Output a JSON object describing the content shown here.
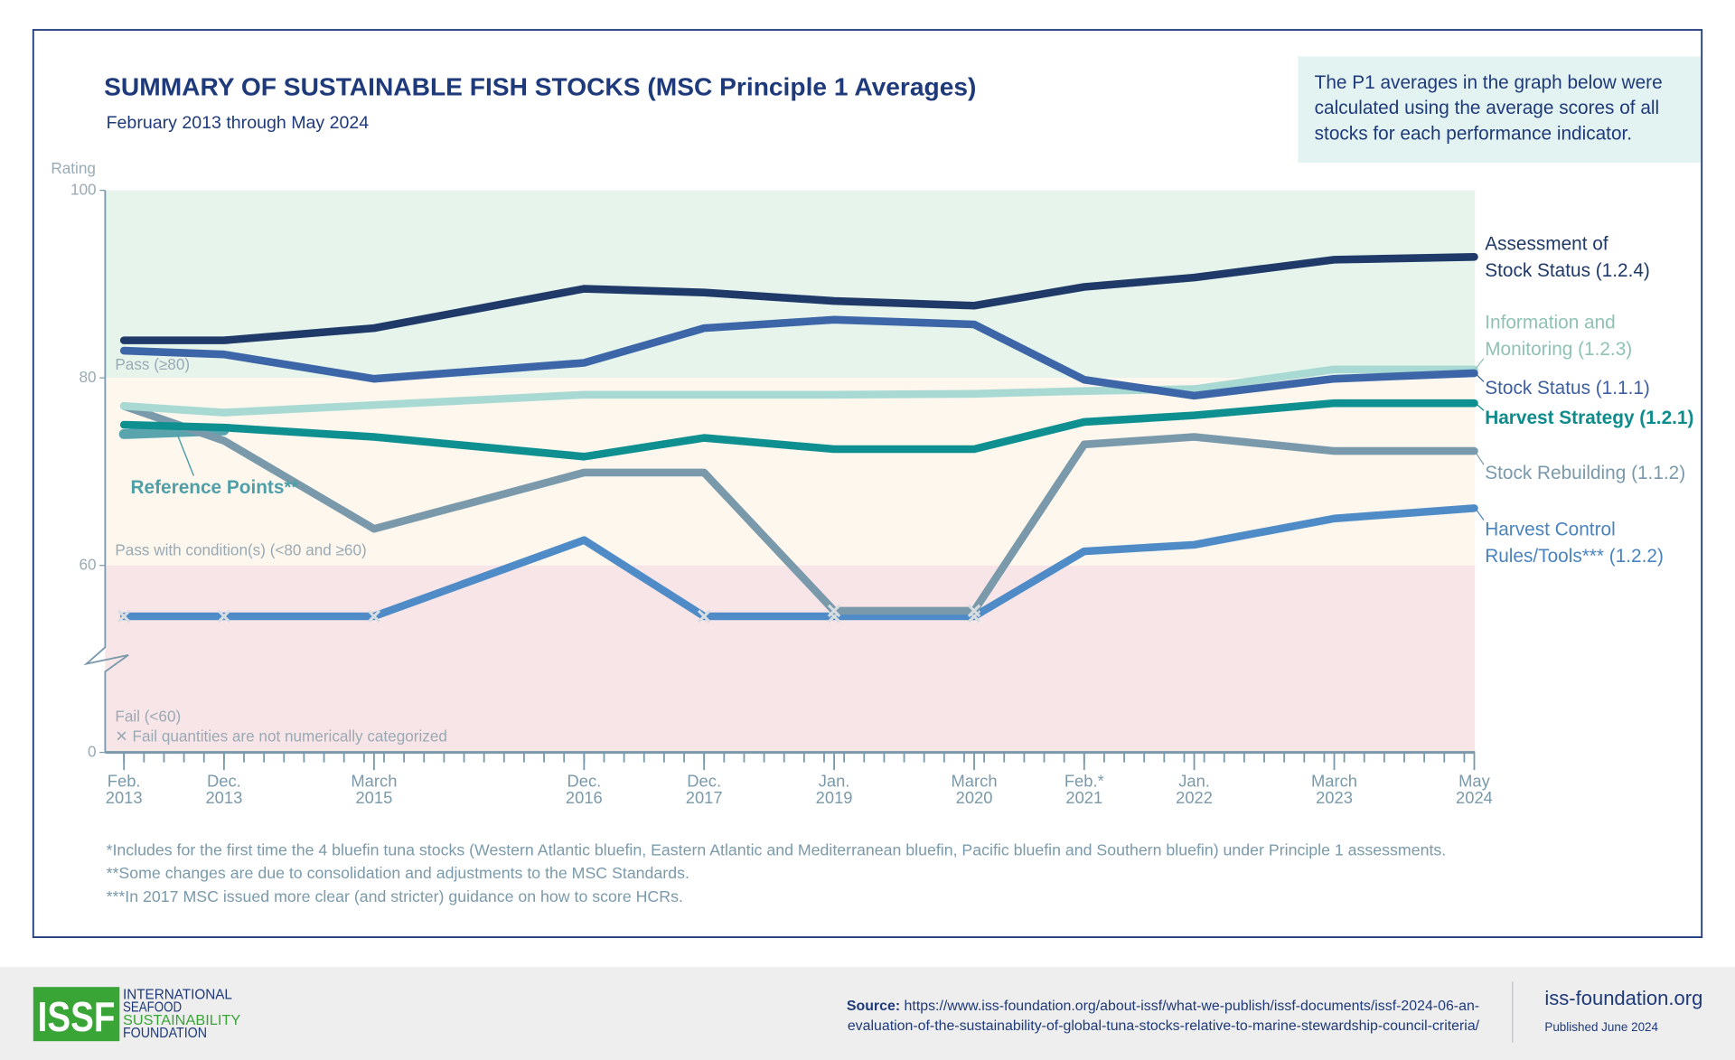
{
  "header": {
    "title": "SUMMARY OF SUSTAINABLE FISH STOCKS (MSC Principle 1 Averages)",
    "subtitle": "February 2013 through May 2024",
    "note_lines": [
      "The P1 averages in the graph below were",
      "calculated using the average scores of all",
      "stocks for each performance indicator."
    ]
  },
  "chart_data": {
    "type": "line",
    "ylabel": "Rating",
    "y_ticks": [
      "100",
      "80",
      "60",
      "0"
    ],
    "ylim": [
      0,
      100
    ],
    "axis_break_below": 60,
    "x": [
      "2013-02",
      "2013-12",
      "2015-03",
      "2016-12",
      "2017-12",
      "2019-01",
      "2020-03",
      "2021-02",
      "2022-01",
      "2023-03",
      "2024-05"
    ],
    "x_tick_labels": [
      [
        "Feb.",
        "2013"
      ],
      [
        "Dec.",
        "2013"
      ],
      [
        "March",
        "2015"
      ],
      [
        "Dec.",
        "2016"
      ],
      [
        "Dec.",
        "2017"
      ],
      [
        "Jan.",
        "2019"
      ],
      [
        "March",
        "2020"
      ],
      [
        "Feb.*",
        "2021"
      ],
      [
        "Jan.",
        "2022"
      ],
      [
        "March",
        "2023"
      ],
      [
        "May",
        "2024"
      ]
    ],
    "bands": [
      {
        "label": "Pass (≥80)",
        "from": 80,
        "to": 100,
        "color": "#e6f4ec"
      },
      {
        "label": "Pass with condition(s) (<80 and ≥60)",
        "from": 60,
        "to": 80,
        "color": "#fdf7ee"
      },
      {
        "label": "Fail (<60)",
        "from": 0,
        "to": 60,
        "color": "#f8e5e8"
      }
    ],
    "fail_marker_note": "Fail quantities are not numerically categorized",
    "series": [
      {
        "name": [
          "Assessment of",
          "Stock Status (1.2.4)"
        ],
        "color": "#1f3a68",
        "label_color": "#1f3a68",
        "values": [
          84.0,
          84.0,
          85.3,
          89.5,
          89.1,
          88.2,
          87.7,
          89.7,
          90.7,
          92.6,
          92.9
        ]
      },
      {
        "name": [
          "Information and",
          "Monitoring (1.2.3)"
        ],
        "color": "#a8dad3",
        "label_color": "#8fc2b4",
        "values": [
          77.0,
          76.3,
          77.1,
          78.2,
          78.2,
          78.2,
          78.3,
          78.6,
          78.8,
          80.9,
          80.9
        ]
      },
      {
        "name": [
          "Stock Status (1.1.1)"
        ],
        "color": "#3d66a8",
        "label_color": "#3d5fa0",
        "values": [
          82.9,
          82.5,
          79.9,
          81.6,
          85.3,
          86.2,
          85.7,
          79.8,
          78.1,
          79.9,
          80.5
        ]
      },
      {
        "name": [
          "Harvest Strategy (1.2.1)"
        ],
        "color": "#0e9090",
        "label_color": "#0e8c8c",
        "values": [
          75.0,
          74.7,
          73.7,
          71.6,
          73.6,
          72.4,
          72.4,
          75.3,
          76.0,
          77.3,
          77.3
        ]
      },
      {
        "name": [
          "Stock Rebuilding (1.1.2)"
        ],
        "color": "#7a9aab",
        "label_color": "#7a9aab",
        "values": [
          77.0,
          73.3,
          63.9,
          69.9,
          69.9,
          "fail",
          "fail",
          72.9,
          73.7,
          72.2,
          72.2
        ]
      },
      {
        "name": [
          "Harvest Control",
          "Rules/Tools*** (1.2.2)"
        ],
        "color": "#4f8cc7",
        "label_color": "#4a84c0",
        "values": [
          "fail",
          "fail",
          "fail",
          62.7,
          "fail",
          "fail",
          "fail",
          61.5,
          62.2,
          65.0,
          66.1
        ]
      },
      {
        "name": [
          "Reference Points**"
        ],
        "color": "#5aa5ad",
        "label_color": "#4ea0a8",
        "values": [
          74.0,
          74.4,
          null,
          null,
          null,
          null,
          null,
          null,
          null,
          null,
          null
        ]
      }
    ]
  },
  "footnotes": [
    "*Includes for the first time the 4 bluefin tuna stocks (Western Atlantic bluefin, Eastern Atlantic and Mediterranean bluefin, Pacific bluefin and Southern bluefin) under Principle 1 assessments.",
    "**Some changes are due to consolidation and adjustments to the MSC Standards.",
    "***In 2017 MSC issued more clear (and stricter) guidance on how to score HCRs."
  ],
  "footer": {
    "logo_text": "ISSF",
    "org_lines": [
      "INTERNATIONAL",
      "SEAFOOD",
      "SUSTAINABILITY",
      "FOUNDATION"
    ],
    "source_label": "Source:",
    "source_lines": [
      "https://www.iss-foundation.org/about-issf/what-we-publish/issf-documents/issf-2024-06-an-",
      "evaluation-of-the-sustainability-of-global-tuna-stocks-relative-to-marine-stewardship-council-criteria/"
    ],
    "site": "iss-foundation.org",
    "published": "Published June 2024"
  },
  "colors": {
    "navy": "#1f3a7a",
    "axis": "#7a9aab",
    "note_bg": "#e3f3f1",
    "footer_bg": "#eeeeee",
    "logo_green": "#3aa537"
  }
}
